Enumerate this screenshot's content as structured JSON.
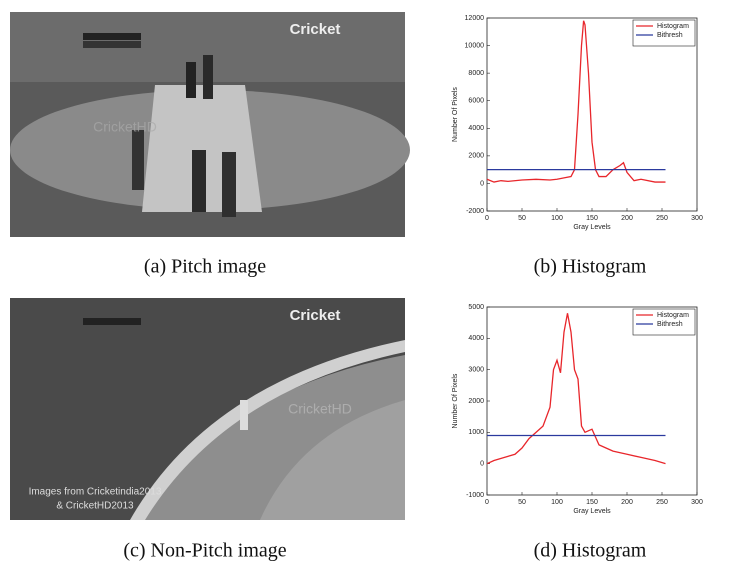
{
  "images": [
    {
      "caption": "(a) Pitch image",
      "logo": "Cricket",
      "watermark": "CricketHD"
    },
    {
      "caption": "(c) Non-Pitch image",
      "logo": "Cricket",
      "watermark": "CricketHD",
      "credit": [
        "Images from Cricketindia2013",
        "& CricketHD2013"
      ]
    }
  ],
  "chart_data": [
    {
      "type": "line",
      "caption": "(b) Histogram",
      "xlabel": "Gray Levels",
      "ylabel": "Number Of Pixels",
      "xlim": [
        0,
        300
      ],
      "ylim": [
        -2000,
        12000
      ],
      "xticks": [
        0,
        50,
        100,
        150,
        200,
        250,
        300
      ],
      "yticks": [
        -2000,
        0,
        2000,
        4000,
        6000,
        8000,
        10000,
        12000
      ],
      "legend": "upper right",
      "series": [
        {
          "name": "Histogram",
          "color": "#e8262b",
          "x": [
            0,
            10,
            20,
            30,
            50,
            70,
            90,
            100,
            110,
            120,
            125,
            130,
            135,
            138,
            140,
            145,
            150,
            155,
            160,
            170,
            180,
            190,
            195,
            200,
            210,
            220,
            240,
            255
          ],
          "values": [
            300,
            100,
            200,
            150,
            250,
            300,
            250,
            300,
            400,
            500,
            1000,
            5000,
            10000,
            11800,
            11500,
            8000,
            3000,
            1000,
            500,
            500,
            1000,
            1300,
            1500,
            800,
            200,
            300,
            100,
            100
          ]
        },
        {
          "name": "Bithresh",
          "color": "#2b3a9e",
          "x": [
            0,
            255
          ],
          "values": [
            1000,
            1000
          ]
        }
      ]
    },
    {
      "type": "line",
      "caption": "(d) Histogram",
      "xlabel": "Gray Levels",
      "ylabel": "Number Of Pixels",
      "xlim": [
        0,
        300
      ],
      "ylim": [
        -1000,
        5000
      ],
      "xticks": [
        0,
        50,
        100,
        150,
        200,
        250,
        300
      ],
      "yticks": [
        -1000,
        0,
        1000,
        2000,
        3000,
        4000,
        5000
      ],
      "legend": "upper right",
      "series": [
        {
          "name": "Histogram",
          "color": "#e8262b",
          "x": [
            0,
            10,
            25,
            40,
            50,
            60,
            70,
            80,
            90,
            95,
            100,
            105,
            110,
            115,
            120,
            125,
            130,
            135,
            140,
            150,
            160,
            170,
            180,
            200,
            220,
            240,
            255
          ],
          "values": [
            0,
            100,
            200,
            300,
            500,
            800,
            1000,
            1200,
            1800,
            3000,
            3300,
            2900,
            4200,
            4800,
            4200,
            3000,
            2700,
            1200,
            1000,
            1100,
            600,
            500,
            400,
            300,
            200,
            100,
            0
          ]
        },
        {
          "name": "Bithresh",
          "color": "#2b3a9e",
          "x": [
            0,
            255
          ],
          "values": [
            900,
            900
          ]
        }
      ]
    }
  ]
}
